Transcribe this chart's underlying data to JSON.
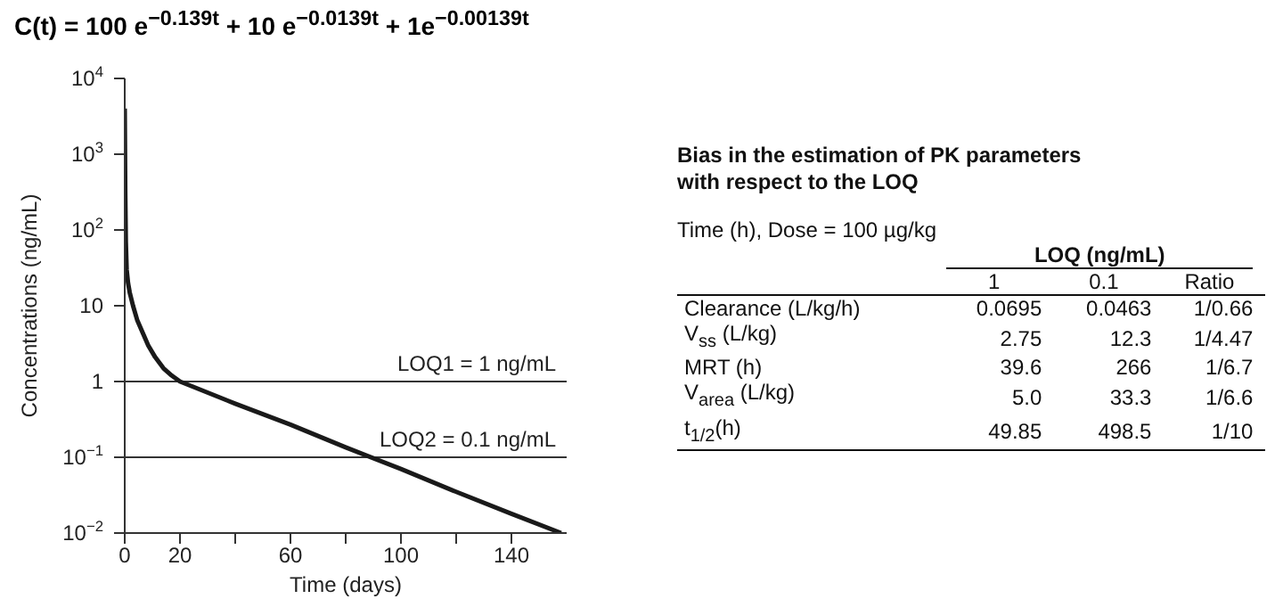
{
  "chart_data": [
    {
      "type": "line",
      "title": "C(t) = 100 e$^{−0.139t}$ + 10 e$^{−0.0139t}$ + 1e$^{−0.00139t}$",
      "xlabel": "Time (days)",
      "ylabel": "Concentrations (ng/mL)",
      "log": true,
      "marker": "none",
      "line_style": "solid",
      "x": [
        0,
        0.2,
        0.4,
        0.7,
        1.2,
        1.8,
        3,
        4.5,
        6.5,
        8.5,
        11,
        14,
        17,
        20,
        40,
        60,
        80,
        100,
        120,
        140,
        158
      ],
      "series": [
        {
          "color": "#1a1a1a",
          "values": [
            4000,
            300,
            70,
            30,
            20,
            15,
            10,
            6.5,
            4.4,
            3,
            2.1,
            1.5,
            1.2,
            1,
            0.51,
            0.27,
            0.135,
            0.07,
            0.035,
            0.018,
            0.01
          ]
        }
      ],
      "xlim": [
        0,
        160
      ],
      "xticks": [
        0,
        20,
        {
          "value": 40,
          "label": null
        },
        60,
        {
          "value": 80,
          "label": null
        },
        100,
        {
          "value": 120,
          "label": null
        },
        140
      ],
      "ylim": [
        0.01,
        10000
      ],
      "yticks": [
        {
          "value": 0.01,
          "label": "10$^{−2}$"
        },
        {
          "value": 0.1,
          "label": "10$^{−1}$"
        },
        1,
        10,
        {
          "value": 100,
          "label": "10$^{2}$"
        },
        {
          "value": 1000,
          "label": "10$^{3}$"
        },
        {
          "value": 10000,
          "label": "10$^{4}$"
        }
      ],
      "ref_lines": [
        {
          "axis": "y",
          "value": 1,
          "label": "LOQ1 = 1 ng/mL",
          "color": "#333333"
        },
        {
          "axis": "y",
          "value": 0.1,
          "label": "LOQ2 = 0.1 ng/mL",
          "color": "#333333"
        }
      ],
      "grid": false,
      "legend": false
    },
    {
      "type": "other",
      "data_labels": true,
      "title": "Bias in the estimation of PK parameters with respect to the LOQ",
      "subtitle": "Time (h), Dose = 100 µg/kg",
      "legend_title": "LOQ (ng/mL)",
      "categories": [
        "Clearance (L/kg/h)",
        "V$_{ss}$ (L/kg)",
        "MRT (h)",
        "V$_{area}$ (L/kg)",
        "t$_{1/2}$(h)"
      ],
      "series": [
        {
          "name": "1",
          "values": [
            0.0695,
            2.75,
            39.6,
            5.0,
            49.85
          ],
          "value_labels": [
            "0.0695",
            "2.75",
            "39.6",
            "5.0",
            "49.85"
          ]
        },
        {
          "name": "0.1",
          "values": [
            0.0463,
            12.3,
            266,
            33.3,
            498.5
          ]
        },
        {
          "name": "Ratio",
          "values": [
            null,
            null,
            null,
            null,
            null
          ],
          "value_labels": [
            "1/0.66",
            "1/4.47",
            "1/6.7",
            "1/6.6",
            "1/10"
          ]
        }
      ]
    }
  ]
}
